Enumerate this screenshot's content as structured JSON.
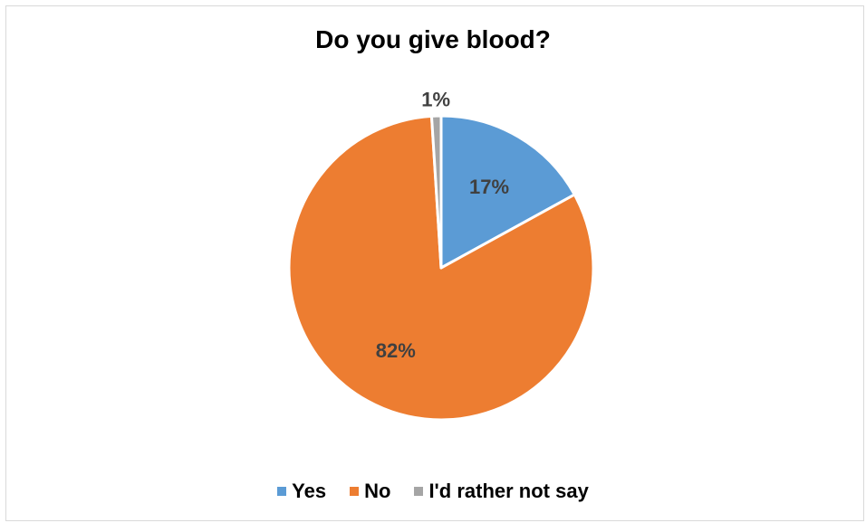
{
  "chart_data": {
    "type": "pie",
    "title": "Do you give blood?",
    "categories": [
      "Yes",
      "No",
      "I'd rather not say"
    ],
    "values": [
      17,
      82,
      1
    ],
    "data_labels": [
      "17%",
      "82%",
      "1%"
    ],
    "colors": [
      "#5b9bd5",
      "#ed7d31",
      "#a5a5a5"
    ],
    "legend_position": "bottom"
  }
}
